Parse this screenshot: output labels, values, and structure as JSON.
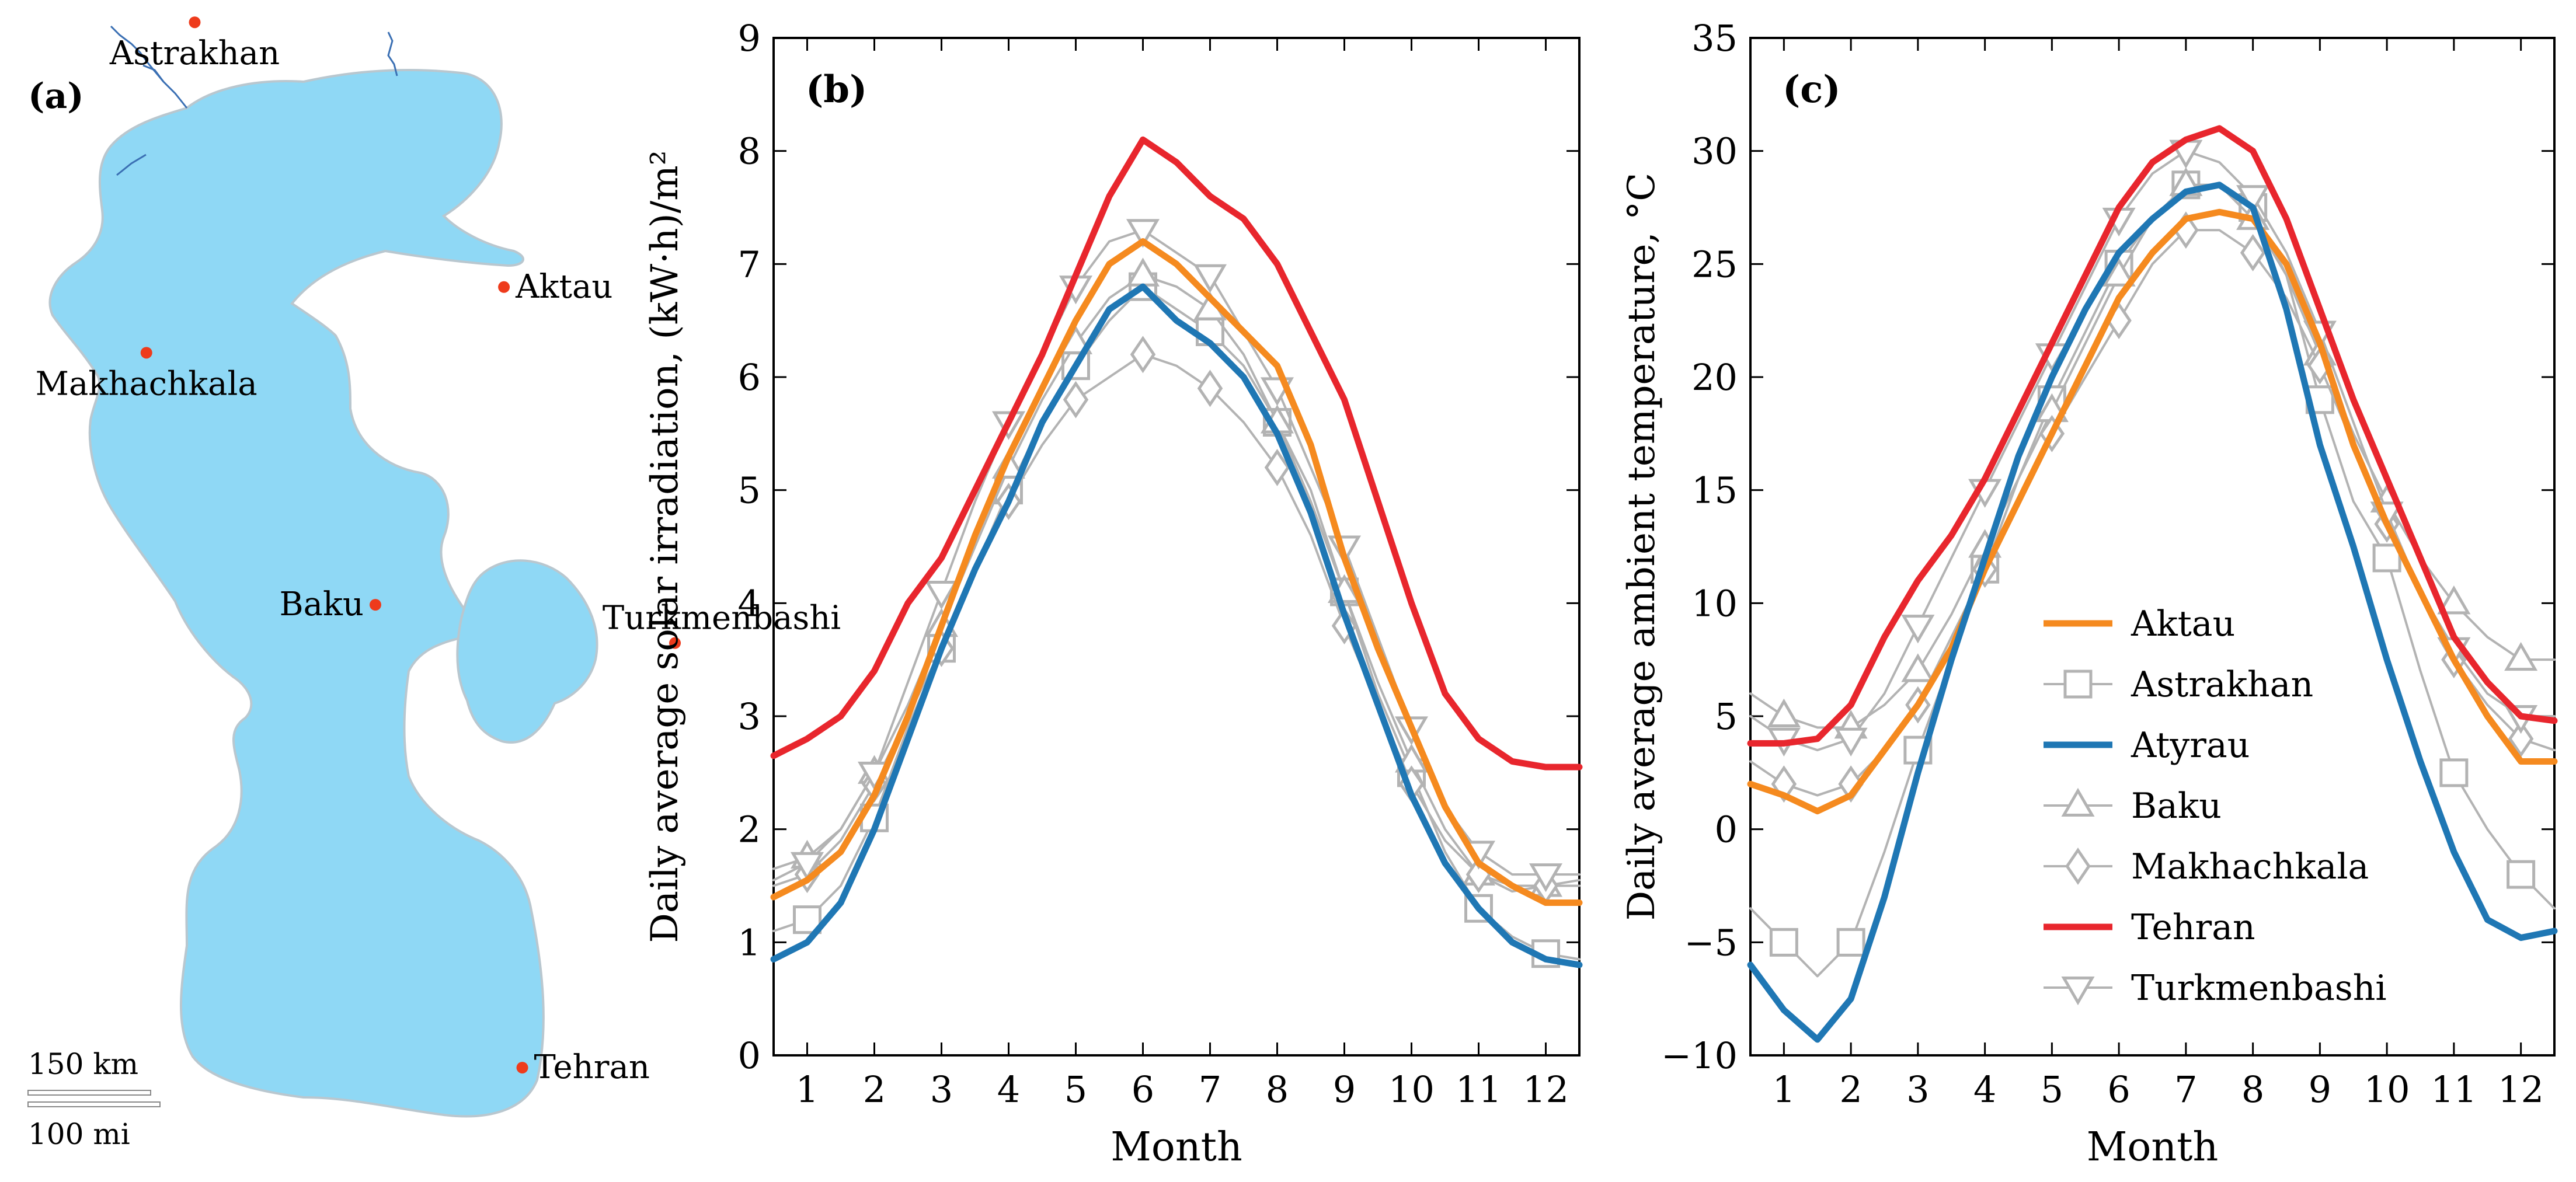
{
  "panel_a": {
    "label": "(a)",
    "cities": [
      {
        "name": "Atyrau",
        "lon": 51.9,
        "lat": 47.1
      },
      {
        "name": "Astrakhan",
        "lon": 48.0,
        "lat": 46.35
      },
      {
        "name": "Aktau",
        "lon": 51.2,
        "lat": 43.65
      },
      {
        "name": "Makhachkala",
        "lon": 47.5,
        "lat": 42.98
      },
      {
        "name": "Baku",
        "lon": 49.87,
        "lat": 40.41
      },
      {
        "name": "Turkmenbashi",
        "lon": 52.97,
        "lat": 40.02
      },
      {
        "name": "Tehran",
        "lon": 51.39,
        "lat": 35.69
      }
    ],
    "scalebar_km": "150 km",
    "scalebar_mi": "100 mi",
    "colors": {
      "sea": "#8fd8f5",
      "city": "#ee3b1c",
      "river": "#3a6fb3"
    }
  },
  "chart_data": [
    {
      "type": "line",
      "panel_label": "(b)",
      "xlabel": "Month",
      "ylabel": "Daily average solar irradiation, (kW·h)/m²",
      "xlim": [
        0.5,
        12.5
      ],
      "ylim": [
        0,
        9
      ],
      "xticks": [
        "1",
        "2",
        "3",
        "4",
        "5",
        "6",
        "7",
        "8",
        "9",
        "10",
        "11",
        "12"
      ],
      "yticks": [
        "0",
        "1",
        "2",
        "3",
        "4",
        "5",
        "6",
        "7",
        "8",
        "9"
      ],
      "series": [
        {
          "name": "Astrakhan",
          "x": [
            0.5,
            1,
            1.5,
            2,
            2.5,
            3,
            3.5,
            4,
            4.5,
            5,
            5.5,
            6,
            6.5,
            7,
            7.5,
            8,
            8.5,
            9,
            9.5,
            10,
            10.5,
            11,
            11.5,
            12,
            12.5
          ],
          "values": [
            1.1,
            1.2,
            1.5,
            2.1,
            2.9,
            3.6,
            4.3,
            5.0,
            5.6,
            6.1,
            6.5,
            6.8,
            6.6,
            6.4,
            6.1,
            5.6,
            5.0,
            4.1,
            3.2,
            2.5,
            1.8,
            1.3,
            1.05,
            0.9,
            0.85
          ]
        },
        {
          "name": "Baku",
          "x": [
            0.5,
            1,
            1.5,
            2,
            2.5,
            3,
            3.5,
            4,
            4.5,
            5,
            5.5,
            6,
            6.5,
            7,
            7.5,
            8,
            8.5,
            9,
            9.5,
            10,
            10.5,
            11,
            11.5,
            12,
            12.5
          ],
          "values": [
            1.65,
            1.75,
            2.0,
            2.5,
            3.1,
            3.8,
            4.5,
            5.2,
            5.8,
            6.3,
            6.7,
            6.9,
            6.8,
            6.6,
            6.2,
            5.6,
            4.9,
            4.1,
            3.3,
            2.6,
            2.0,
            1.6,
            1.45,
            1.5,
            1.55
          ]
        },
        {
          "name": "Makhachkala",
          "x": [
            0.5,
            1,
            1.5,
            2,
            2.5,
            3,
            3.5,
            4,
            4.5,
            5,
            5.5,
            6,
            6.5,
            7,
            7.5,
            8,
            8.5,
            9,
            9.5,
            10,
            10.5,
            11,
            11.5,
            12,
            12.5
          ],
          "values": [
            1.5,
            1.6,
            1.9,
            2.4,
            3.0,
            3.6,
            4.3,
            4.9,
            5.4,
            5.8,
            6.0,
            6.2,
            6.1,
            5.9,
            5.6,
            5.2,
            4.6,
            3.8,
            3.1,
            2.4,
            1.9,
            1.6,
            1.5,
            1.5,
            1.5
          ]
        },
        {
          "name": "Turkmenbashi",
          "x": [
            0.5,
            1,
            1.5,
            2,
            2.5,
            3,
            3.5,
            4,
            4.5,
            5,
            5.5,
            6,
            6.5,
            7,
            7.5,
            8,
            8.5,
            9,
            9.5,
            10,
            10.5,
            11,
            11.5,
            12,
            12.5
          ],
          "values": [
            1.55,
            1.7,
            2.0,
            2.5,
            3.3,
            4.1,
            4.9,
            5.6,
            6.2,
            6.8,
            7.2,
            7.3,
            7.1,
            6.9,
            6.4,
            5.9,
            5.2,
            4.5,
            3.7,
            2.9,
            2.2,
            1.8,
            1.6,
            1.6,
            1.6
          ]
        },
        {
          "name": "Tehran",
          "x": [
            0.5,
            1,
            1.5,
            2,
            2.5,
            3,
            3.5,
            4,
            4.5,
            5,
            5.5,
            6,
            6.5,
            7,
            7.5,
            8,
            8.5,
            9,
            9.5,
            10,
            10.5,
            11,
            11.5,
            12,
            12.5
          ],
          "values": [
            2.65,
            2.8,
            3.0,
            3.4,
            4.0,
            4.4,
            5.0,
            5.6,
            6.2,
            6.9,
            7.6,
            8.1,
            7.9,
            7.6,
            7.4,
            7.0,
            6.4,
            5.8,
            4.9,
            4.0,
            3.2,
            2.8,
            2.6,
            2.55,
            2.55
          ]
        },
        {
          "name": "Aktau",
          "x": [
            0.5,
            1,
            1.5,
            2,
            2.5,
            3,
            3.5,
            4,
            4.5,
            5,
            5.5,
            6,
            6.5,
            7,
            7.5,
            8,
            8.5,
            9,
            9.5,
            10,
            10.5,
            11,
            11.5,
            12,
            12.5
          ],
          "values": [
            1.4,
            1.55,
            1.8,
            2.3,
            3.0,
            3.8,
            4.6,
            5.3,
            5.9,
            6.5,
            7.0,
            7.2,
            7.0,
            6.7,
            6.4,
            6.1,
            5.4,
            4.4,
            3.6,
            2.9,
            2.2,
            1.7,
            1.5,
            1.35,
            1.35
          ]
        },
        {
          "name": "Atyrau",
          "x": [
            0.5,
            1,
            1.5,
            2,
            2.5,
            3,
            3.5,
            4,
            4.5,
            5,
            5.5,
            6,
            6.5,
            7,
            7.5,
            8,
            8.5,
            9,
            9.5,
            10,
            10.5,
            11,
            11.5,
            12,
            12.5
          ],
          "values": [
            0.85,
            1.0,
            1.35,
            2.0,
            2.8,
            3.6,
            4.3,
            4.9,
            5.6,
            6.1,
            6.6,
            6.8,
            6.5,
            6.3,
            6.0,
            5.5,
            4.8,
            3.9,
            3.1,
            2.3,
            1.7,
            1.3,
            1.0,
            0.85,
            0.8
          ]
        }
      ]
    },
    {
      "type": "line",
      "panel_label": "(c)",
      "xlabel": "Month",
      "ylabel": "Daily average ambient temperature, °C",
      "xlim": [
        0.5,
        12.5
      ],
      "ylim": [
        -10,
        35
      ],
      "xticks": [
        "1",
        "2",
        "3",
        "4",
        "5",
        "6",
        "7",
        "8",
        "9",
        "10",
        "11",
        "12"
      ],
      "yticks": [
        "−10",
        "−5",
        "0",
        "5",
        "10",
        "15",
        "20",
        "25",
        "30",
        "35"
      ],
      "series": [
        {
          "name": "Astrakhan",
          "x": [
            0.5,
            1,
            1.5,
            2,
            2.5,
            3,
            3.5,
            4,
            4.5,
            5,
            5.5,
            6,
            6.5,
            7,
            7.5,
            8,
            8.5,
            9,
            9.5,
            10,
            10.5,
            11,
            11.5,
            12,
            12.5
          ],
          "values": [
            -3.5,
            -5.0,
            -6.5,
            -5.0,
            -1.0,
            3.5,
            7.5,
            11.5,
            15.5,
            19.0,
            22.0,
            25.0,
            27.0,
            28.5,
            28.5,
            27.5,
            24.5,
            19.0,
            14.5,
            12.0,
            7.0,
            2.5,
            0.0,
            -2.0,
            -3.5
          ]
        },
        {
          "name": "Baku",
          "x": [
            0.5,
            1,
            1.5,
            2,
            2.5,
            3,
            3.5,
            4,
            4.5,
            5,
            5.5,
            6,
            6.5,
            7,
            7.5,
            8,
            8.5,
            9,
            9.5,
            10,
            10.5,
            11,
            11.5,
            12,
            12.5
          ],
          "values": [
            6.0,
            5.0,
            4.5,
            4.5,
            5.5,
            7.0,
            9.5,
            12.5,
            15.5,
            18.5,
            21.5,
            24.5,
            27.0,
            28.5,
            28.5,
            27.0,
            24.5,
            21.0,
            17.5,
            14.5,
            12.0,
            10.0,
            8.5,
            7.5,
            7.5
          ]
        },
        {
          "name": "Makhachkala",
          "x": [
            0.5,
            1,
            1.5,
            2,
            2.5,
            3,
            3.5,
            4,
            4.5,
            5,
            5.5,
            6,
            6.5,
            7,
            7.5,
            8,
            8.5,
            9,
            9.5,
            10,
            10.5,
            11,
            11.5,
            12,
            12.5
          ],
          "values": [
            3.0,
            2.0,
            1.5,
            2.0,
            3.5,
            5.5,
            8.5,
            11.5,
            14.5,
            17.5,
            20.0,
            22.5,
            25.0,
            26.5,
            26.5,
            25.5,
            23.5,
            20.5,
            17.0,
            13.5,
            10.5,
            7.5,
            5.5,
            4.0,
            3.5
          ]
        },
        {
          "name": "Turkmenbashi",
          "x": [
            0.5,
            1,
            1.5,
            2,
            2.5,
            3,
            3.5,
            4,
            4.5,
            5,
            5.5,
            6,
            6.5,
            7,
            7.5,
            8,
            8.5,
            9,
            9.5,
            10,
            10.5,
            11,
            11.5,
            12,
            12.5
          ],
          "values": [
            5.0,
            4.0,
            3.5,
            4.0,
            6.0,
            9.0,
            12.0,
            15.0,
            18.0,
            21.0,
            24.0,
            27.0,
            29.0,
            30.0,
            29.5,
            28.0,
            25.5,
            22.0,
            18.0,
            14.0,
            10.5,
            8.0,
            6.0,
            5.0,
            5.0
          ]
        },
        {
          "name": "Tehran",
          "x": [
            0.5,
            1,
            1.5,
            2,
            2.5,
            3,
            3.5,
            4,
            4.5,
            5,
            5.5,
            6,
            6.5,
            7,
            7.5,
            8,
            8.5,
            9,
            9.5,
            10,
            10.5,
            11,
            11.5,
            12,
            12.5
          ],
          "values": [
            3.8,
            3.8,
            4.0,
            5.5,
            8.5,
            11.0,
            13.0,
            15.5,
            18.5,
            21.5,
            24.5,
            27.5,
            29.5,
            30.5,
            31.0,
            30.0,
            27.0,
            23.0,
            19.0,
            15.5,
            12.0,
            8.5,
            6.5,
            5.0,
            4.8
          ]
        },
        {
          "name": "Aktau",
          "x": [
            0.5,
            1,
            1.5,
            2,
            2.5,
            3,
            3.5,
            4,
            4.5,
            5,
            5.5,
            6,
            6.5,
            7,
            7.5,
            8,
            8.5,
            9,
            9.5,
            10,
            10.5,
            11,
            11.5,
            12,
            12.5
          ],
          "values": [
            2.0,
            1.5,
            0.8,
            1.5,
            3.5,
            5.5,
            8.0,
            11.5,
            14.5,
            17.5,
            20.5,
            23.5,
            25.5,
            27.0,
            27.3,
            27.0,
            25.0,
            21.5,
            17.0,
            13.5,
            10.5,
            7.5,
            5.0,
            3.0,
            3.0
          ]
        },
        {
          "name": "Atyrau",
          "x": [
            0.5,
            1,
            1.5,
            2,
            2.5,
            3,
            3.5,
            4,
            4.5,
            5,
            5.5,
            6,
            6.5,
            7,
            7.5,
            8,
            8.5,
            9,
            9.5,
            10,
            10.5,
            11,
            11.5,
            12,
            12.5
          ],
          "values": [
            -6.0,
            -8.0,
            -9.3,
            -7.5,
            -3.0,
            2.5,
            7.5,
            12.0,
            16.5,
            20.0,
            23.0,
            25.5,
            27.0,
            28.2,
            28.5,
            27.5,
            23.0,
            17.0,
            12.5,
            7.5,
            3.0,
            -1.0,
            -4.0,
            -4.8,
            -4.5
          ]
        }
      ]
    }
  ],
  "legend": {
    "placement": "lower-center",
    "entries": [
      "Aktau",
      "Astrakhan",
      "Atyrau",
      "Baku",
      "Makhachkala",
      "Tehran",
      "Turkmenbashi"
    ]
  },
  "styles": {
    "Aktau": {
      "color": "#f58a1f",
      "marker": "none",
      "main": true
    },
    "Atyrau": {
      "color": "#1f77b4",
      "marker": "none",
      "main": true
    },
    "Tehran": {
      "color": "#e8262d",
      "marker": "none",
      "main": true
    },
    "Astrakhan": {
      "color": "#b3b3b3",
      "marker": "square",
      "main": false
    },
    "Baku": {
      "color": "#b3b3b3",
      "marker": "triangle-up",
      "main": false
    },
    "Makhachkala": {
      "color": "#b3b3b3",
      "marker": "diamond",
      "main": false
    },
    "Turkmenbashi": {
      "color": "#b3b3b3",
      "marker": "triangle-down",
      "main": false
    }
  }
}
